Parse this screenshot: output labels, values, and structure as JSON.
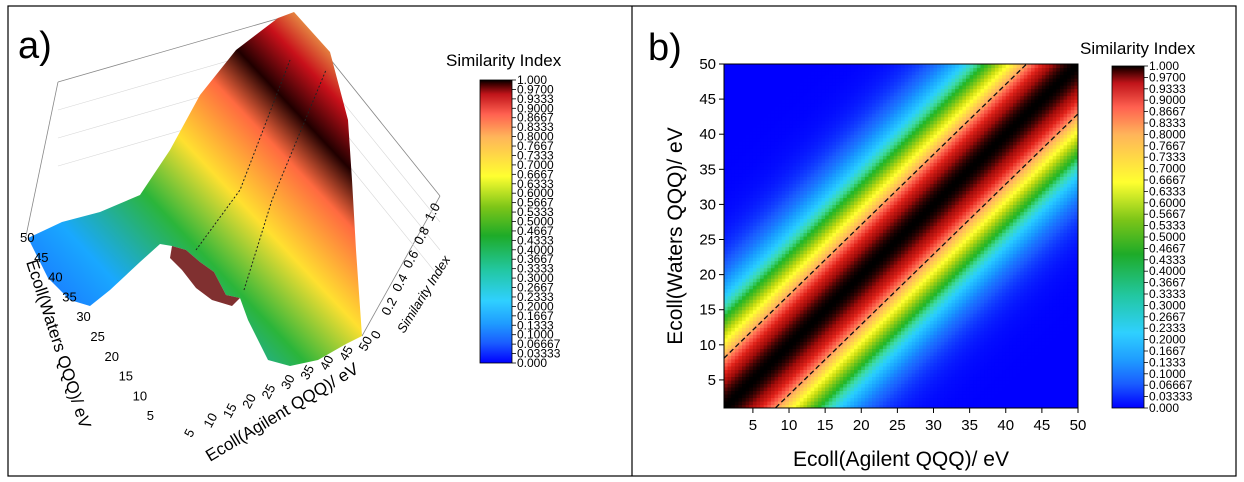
{
  "chart_data": [
    {
      "panel_label": "a)",
      "type": "surface3d",
      "xlabel": "Ecoll(Agilent QQQ)/ eV",
      "ylabel": "Ecoll(Waters QQQ)/ eV",
      "zlabel": "Similarity Index",
      "x_ticks": [
        "5",
        "10",
        "15",
        "20",
        "25",
        "30",
        "35",
        "40",
        "45",
        "50"
      ],
      "y_ticks": [
        "5",
        "10",
        "15",
        "20",
        "25",
        "30",
        "35",
        "40",
        "45",
        "50"
      ],
      "z_ticks": [
        "0",
        "0.2",
        "0.4",
        "0.6",
        "0.8",
        "1.0"
      ],
      "xlim": [
        1,
        50
      ],
      "ylim": [
        1,
        50
      ],
      "zlim": [
        0,
        1
      ],
      "colorbar_title": "Similarity Index",
      "colorbar_ticks": [
        "1.000",
        "0.9700",
        "0.9333",
        "0.9000",
        "0.8667",
        "0.8333",
        "0.8000",
        "0.7667",
        "0.7333",
        "0.7000",
        "0.6667",
        "0.6333",
        "0.6000",
        "0.5667",
        "0.5333",
        "0.5000",
        "0.4667",
        "0.4333",
        "0.4000",
        "0.3667",
        "0.3333",
        "0.3000",
        "0.2667",
        "0.2333",
        "0.2000",
        "0.1667",
        "0.1333",
        "0.1000",
        "0.06667",
        "0.03333",
        "0.000"
      ]
    },
    {
      "panel_label": "b)",
      "type": "heatmap",
      "xlabel": "Ecoll(Agilent QQQ)/ eV",
      "ylabel": "Ecoll(Waters QQQ)/ eV",
      "x_ticks": [
        "5",
        "10",
        "15",
        "20",
        "25",
        "30",
        "35",
        "40",
        "45",
        "50"
      ],
      "y_ticks": [
        "5",
        "10",
        "15",
        "20",
        "25",
        "30",
        "35",
        "40",
        "45",
        "50"
      ],
      "xlim": [
        1,
        50
      ],
      "ylim": [
        1,
        50
      ],
      "colorbar_title": "Similarity Index",
      "colorbar_ticks": [
        "1.000",
        "0.9700",
        "0.9333",
        "0.9000",
        "0.8667",
        "0.8333",
        "0.8000",
        "0.7667",
        "0.7333",
        "0.7000",
        "0.6667",
        "0.6333",
        "0.6000",
        "0.5667",
        "0.5333",
        "0.5000",
        "0.4667",
        "0.4333",
        "0.4000",
        "0.3667",
        "0.3333",
        "0.3000",
        "0.2667",
        "0.2333",
        "0.2000",
        "0.1667",
        "0.1333",
        "0.1000",
        "0.06667",
        "0.03333",
        "0.000"
      ],
      "colormap": [
        "#0000ff",
        "#1a5cff",
        "#19a0ff",
        "#29d0ff",
        "#3fdca8",
        "#22b522",
        "#73c41a",
        "#c8dc10",
        "#ffff30",
        "#ffd84a",
        "#ffb060",
        "#ff6450",
        "#e0221a",
        "#a00c0a",
        "#000000"
      ],
      "surface_model": {
        "ridge_peak": 1.0,
        "ridge_width": 9,
        "falloff": "gaussian"
      },
      "contour_dashed_level": 0.97
    }
  ]
}
